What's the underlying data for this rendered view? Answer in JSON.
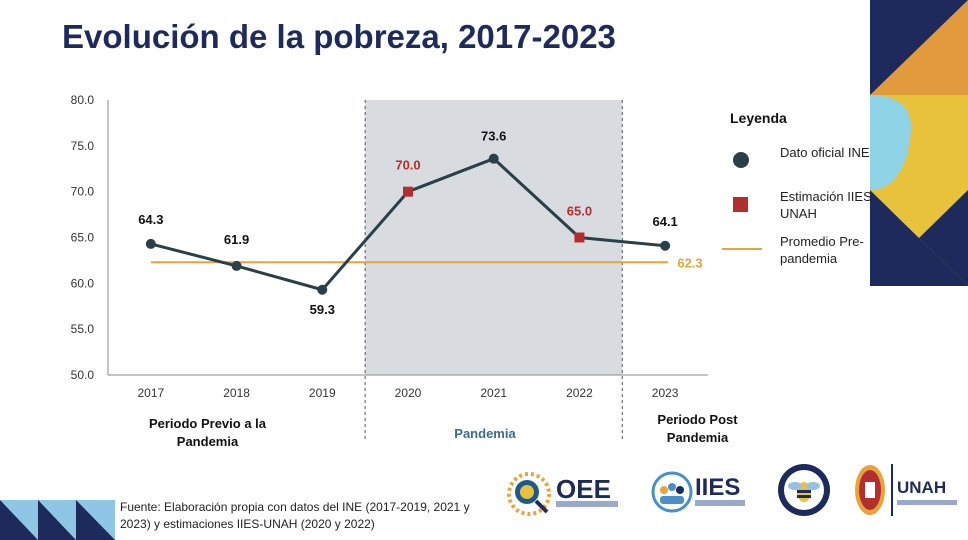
{
  "title": "Evolución de la pobreza, 2017-2023",
  "chart_data": {
    "type": "line",
    "title": "Evolución de la pobreza, 2017-2023",
    "xlabel": "",
    "ylabel": "",
    "ylim": [
      50.0,
      80.0
    ],
    "yticks": [
      "50.0",
      "55.0",
      "60.0",
      "65.0",
      "70.0",
      "75.0",
      "80.0"
    ],
    "ytick_values": [
      50,
      55,
      60,
      65,
      70,
      75,
      80
    ],
    "categories": [
      "2017",
      "2018",
      "2019",
      "2020",
      "2021",
      "2022",
      "2023"
    ],
    "series": [
      {
        "name": "Pobreza",
        "values": [
          64.3,
          61.9,
          59.3,
          70.0,
          73.6,
          65.0,
          64.1
        ],
        "labels": [
          "64.3",
          "61.9",
          "59.3",
          "70.0",
          "73.6",
          "65.0",
          "64.1"
        ],
        "source": [
          "INE",
          "INE",
          "INE",
          "IIES-UNAH",
          "INE",
          "IIES-UNAH",
          "INE"
        ]
      }
    ],
    "reference_line": {
      "name": "Promedio Pre-pandemia",
      "value": 62.3,
      "label": "62.3"
    },
    "shaded_region": {
      "from": "2020",
      "to": "2022",
      "label": "Pandemia"
    },
    "colors": {
      "line": "#2b3f48",
      "official": "#2b3f48",
      "estimate": "#b22f2f",
      "average": "#e8a43a",
      "shade": "#d8dce0"
    }
  },
  "legend": {
    "title": "Leyenda",
    "items": [
      {
        "label": "Dato oficial INE"
      },
      {
        "label": "Estimación IIES-UNAH"
      },
      {
        "label": "Promedio Pre-pandemia"
      }
    ]
  },
  "periods": {
    "pre": "Periodo Previo a la Pandemia",
    "pandemic": "Pandemia",
    "post": "Periodo Post Pandemia"
  },
  "source": "Fuente: Elaboración propia con datos del INE (2017-2019, 2021 y 2023) y estimaciones IIES-UNAH (2020 y 2022)",
  "logos": {
    "oee": "OEE",
    "iies": "IIES",
    "unah": "UNAH"
  }
}
